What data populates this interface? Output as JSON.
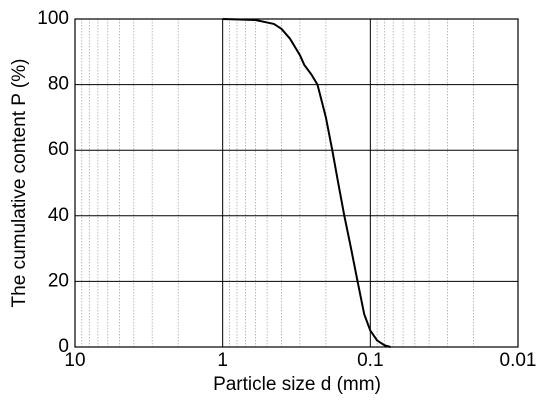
{
  "chart_data": {
    "type": "line",
    "x_label": "Particle size d (mm)",
    "y_label": "The cumulative content P (%)",
    "xscale": "log",
    "xlim": [
      10,
      0.01
    ],
    "xticks": [
      10,
      1,
      0.1,
      0.01
    ],
    "ylim": [
      0,
      100
    ],
    "yticks": [
      0,
      20,
      40,
      60,
      80,
      100
    ],
    "grid": true,
    "minor_grid": true,
    "x": [
      1,
      0.6,
      0.45,
      0.4,
      0.35,
      0.3,
      0.28,
      0.25,
      0.228,
      0.2,
      0.181,
      0.165,
      0.15,
      0.135,
      0.122,
      0.11,
      0.1,
      0.09,
      0.08,
      0.073
    ],
    "series": [
      {
        "color": "#000000",
        "values": [
          100,
          99.7,
          98.5,
          97,
          94,
          89,
          86,
          83,
          80,
          70,
          60,
          50,
          40,
          30,
          20,
          10,
          5,
          2,
          0.5,
          0
        ]
      }
    ]
  }
}
